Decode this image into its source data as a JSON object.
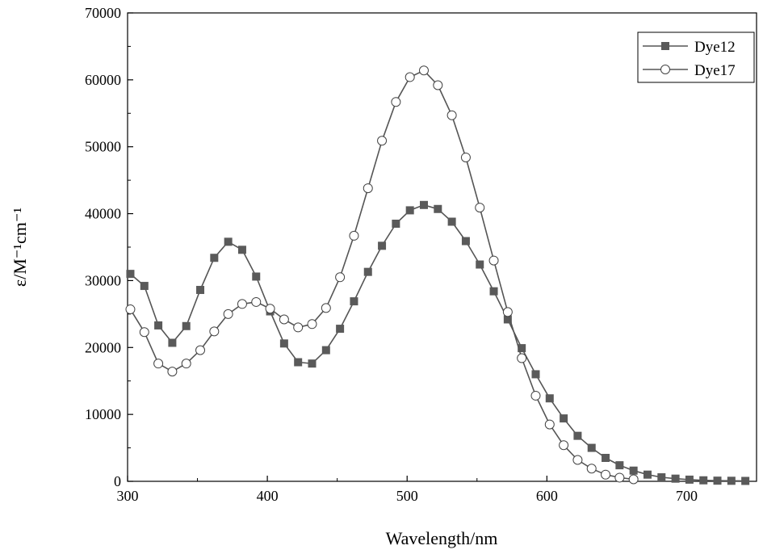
{
  "chart_data": {
    "type": "line",
    "xlabel": "Wavelength/nm",
    "ylabel": "ε/M⁻¹cm⁻¹",
    "xlim": [
      300,
      750
    ],
    "ylim": [
      0,
      70000
    ],
    "x_ticks": [
      "300",
      "400",
      "500",
      "600",
      "700"
    ],
    "y_ticks": [
      "0",
      "10000",
      "20000",
      "30000",
      "40000",
      "50000",
      "60000",
      "70000"
    ],
    "grid": false,
    "legend_position": "top-right",
    "series": [
      {
        "name": "Dye12",
        "marker": "filled-square",
        "color": "#555555",
        "x": [
          302,
          312,
          322,
          332,
          342,
          352,
          362,
          372,
          382,
          392,
          402,
          412,
          422,
          432,
          442,
          452,
          462,
          472,
          482,
          492,
          502,
          512,
          522,
          532,
          542,
          552,
          562,
          572,
          582,
          592,
          602,
          612,
          622,
          632,
          642,
          652,
          662,
          672,
          682,
          692,
          702,
          712,
          722,
          732,
          742
        ],
        "y": [
          31000,
          29200,
          23300,
          20700,
          23200,
          28600,
          33400,
          35800,
          34600,
          30600,
          25400,
          20600,
          17800,
          17600,
          19600,
          22800,
          26900,
          31300,
          35200,
          38500,
          40500,
          41300,
          40700,
          38800,
          35900,
          32400,
          28400,
          24200,
          19900,
          16000,
          12400,
          9400,
          6800,
          5000,
          3500,
          2400,
          1600,
          1000,
          600,
          400,
          250,
          150,
          100,
          80,
          60
        ]
      },
      {
        "name": "Dye17",
        "marker": "open-circle",
        "color": "#555555",
        "x": [
          302,
          312,
          322,
          332,
          342,
          352,
          362,
          372,
          382,
          392,
          402,
          412,
          422,
          432,
          442,
          452,
          462,
          472,
          482,
          492,
          502,
          512,
          522,
          532,
          542,
          552,
          562,
          572,
          582,
          592,
          602,
          612,
          622,
          632,
          642,
          652,
          662
        ],
        "y": [
          25700,
          22300,
          17600,
          16400,
          17600,
          19600,
          22400,
          25000,
          26500,
          26800,
          25800,
          24200,
          23000,
          23500,
          25900,
          30500,
          36700,
          43800,
          50900,
          56700,
          60400,
          61400,
          59200,
          54700,
          48400,
          40900,
          33000,
          25300,
          18400,
          12800,
          8500,
          5400,
          3200,
          1900,
          1000,
          550,
          300
        ]
      }
    ]
  }
}
